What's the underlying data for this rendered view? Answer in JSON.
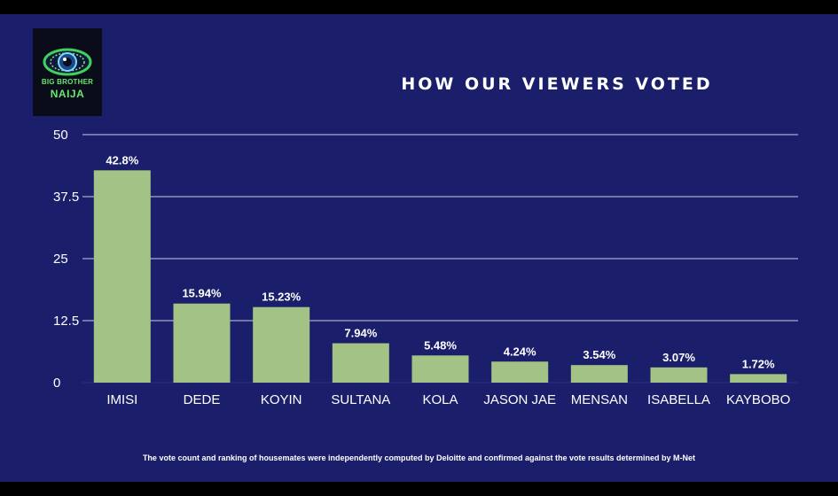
{
  "logo": {
    "line1": "BIG BROTHER",
    "line2": "NAIJA",
    "icon": "eye-icon"
  },
  "title": "HOW OUR VIEWERS VOTED",
  "footnote": "The vote count and ranking of housemates were independently computed by Deloitte and confirmed against the vote results determined by M-Net",
  "colors": {
    "background": "#1b1f6b",
    "bar": "#a3c285",
    "grid": "#c9cbe0",
    "text": "#ffffff",
    "logo_text": "#67e86a"
  },
  "chart_data": {
    "type": "bar",
    "title": "HOW OUR VIEWERS VOTED",
    "xlabel": "",
    "ylabel": "",
    "categories": [
      "IMISI",
      "DEDE",
      "KOYIN",
      "SULTANA",
      "KOLA",
      "JASON JAE",
      "MENSAN",
      "ISABELLA",
      "KAYBOBO"
    ],
    "values": [
      42.8,
      15.94,
      15.23,
      7.94,
      5.48,
      4.24,
      3.54,
      3.07,
      1.72
    ],
    "data_labels": [
      "42.8%",
      "15.94%",
      "15.23%",
      "7.94%",
      "5.48%",
      "4.24%",
      "3.54%",
      "3.07%",
      "1.72%"
    ],
    "yticks": [
      0,
      12.5,
      25,
      37.5,
      50
    ],
    "ytick_labels": [
      "0",
      "12.5",
      "25",
      "37.5",
      "50"
    ],
    "ylim": [
      0,
      50
    ],
    "grid": true,
    "legend": "none"
  }
}
